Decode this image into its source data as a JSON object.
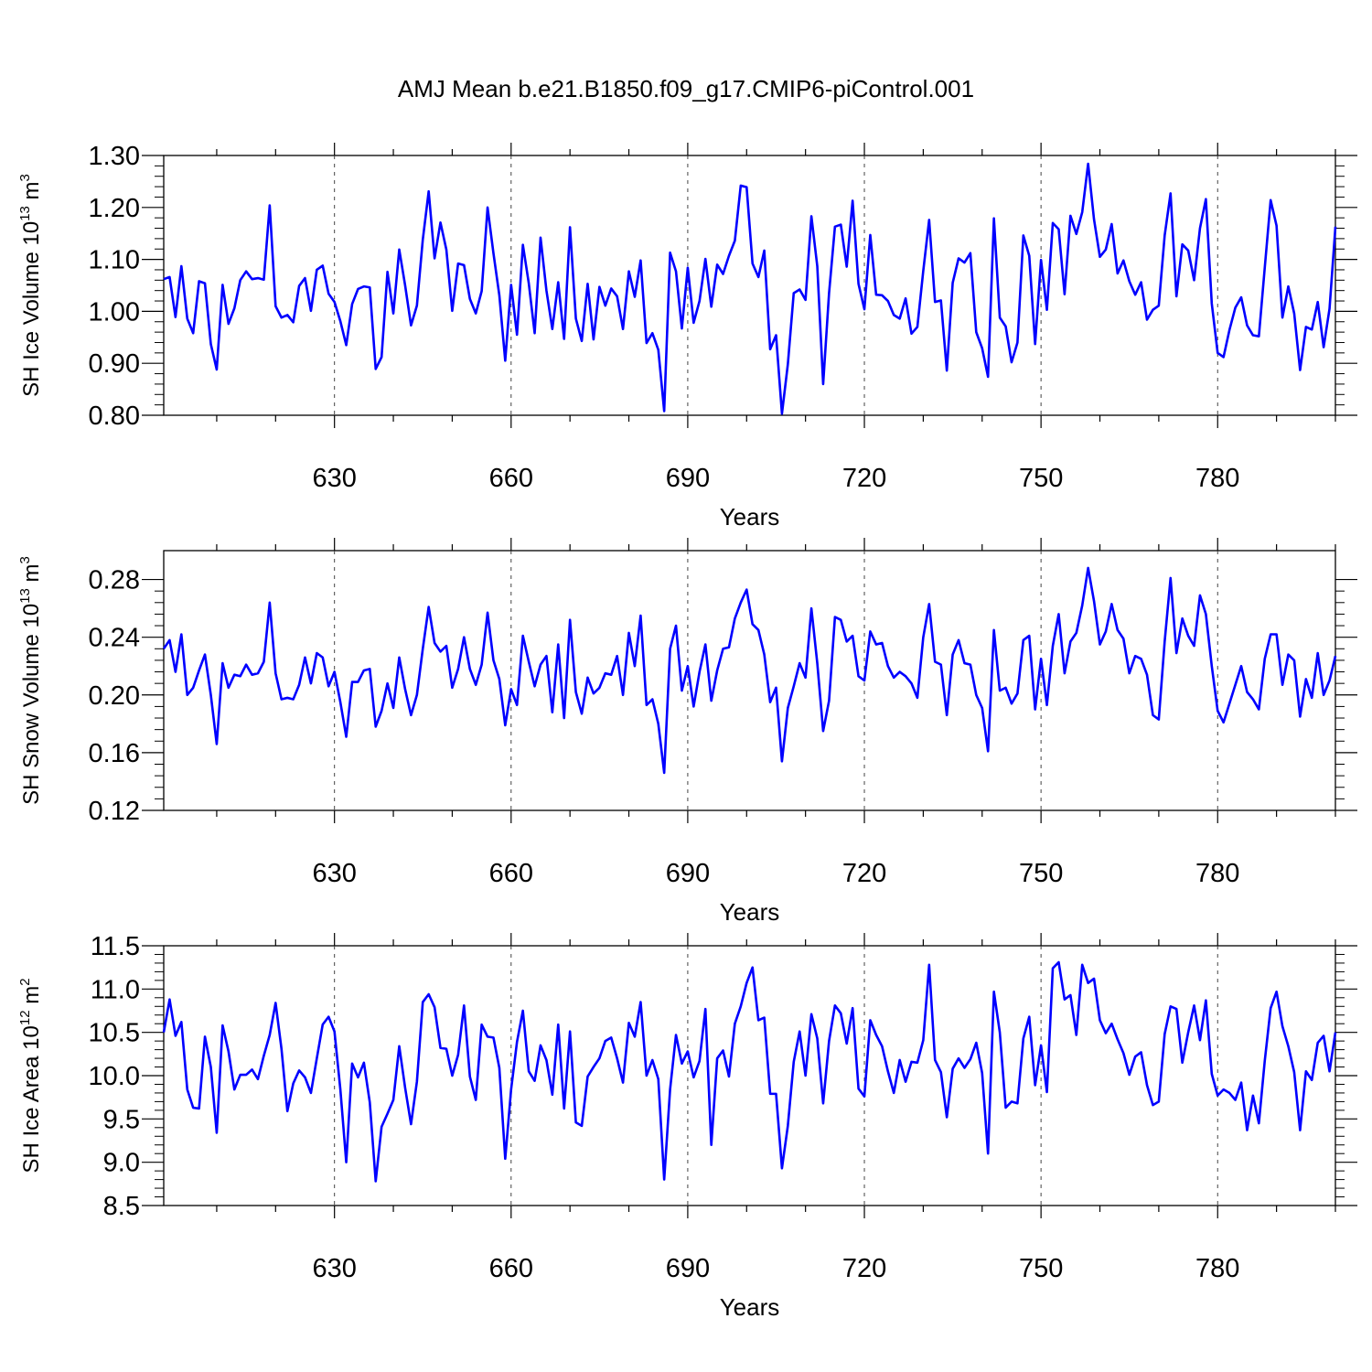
{
  "title": "AMJ Mean b.e21.B1850.f09_g17.CMIP6-piControl.001",
  "colors": {
    "line": "#0000ff",
    "axis": "#000000",
    "grid": "#000000"
  },
  "chart_data": [
    {
      "type": "line",
      "xlabel": "Years",
      "ylabel": {
        "text": "SH Ice Volume 10",
        "exp": "13",
        "unit": " m",
        "unit_exp": "3"
      },
      "x_start": 601,
      "xlim": [
        601,
        800
      ],
      "ylim": [
        0.8,
        1.3
      ],
      "xticks": [
        630,
        660,
        690,
        720,
        750,
        780
      ],
      "xtick_labels": [
        "630",
        "660",
        "690",
        "720",
        "750",
        "780"
      ],
      "yticks": [
        0.8,
        0.9,
        1.0,
        1.1,
        1.2,
        1.3
      ],
      "ytick_labels": [
        "0.80",
        "0.90",
        "1.00",
        "1.10",
        "1.20",
        "1.30"
      ],
      "series": [
        {
          "values": [
            1.062,
            1.066,
            0.989,
            1.087,
            0.986,
            0.958,
            1.058,
            1.054,
            0.937,
            0.888,
            1.051,
            0.976,
            1.006,
            1.06,
            1.077,
            1.062,
            1.064,
            1.061,
            1.204,
            1.01,
            0.988,
            0.993,
            0.979,
            1.049,
            1.064,
            1.001,
            1.08,
            1.088,
            1.034,
            1.018,
            0.981,
            0.935,
            1.014,
            1.043,
            1.048,
            1.046,
            0.889,
            0.912,
            1.076,
            0.996,
            1.119,
            1.05,
            0.973,
            1.011,
            1.138,
            1.231,
            1.102,
            1.171,
            1.119,
            1.001,
            1.092,
            1.089,
            1.024,
            0.996,
            1.039,
            1.2,
            1.112,
            1.031,
            0.905,
            1.051,
            0.955,
            1.128,
            1.054,
            0.958,
            1.142,
            1.04,
            0.966,
            1.056,
            0.947,
            1.162,
            0.986,
            0.943,
            1.053,
            0.946,
            1.047,
            1.011,
            1.044,
            1.029,
            0.966,
            1.077,
            1.028,
            1.098,
            0.939,
            0.958,
            0.926,
            0.808,
            1.113,
            1.077,
            0.967,
            1.084,
            0.978,
            1.02,
            1.101,
            1.009,
            1.09,
            1.072,
            1.107,
            1.136,
            1.242,
            1.239,
            1.092,
            1.066,
            1.117,
            0.927,
            0.954,
            0.803,
            0.898,
            1.035,
            1.042,
            1.022,
            1.183,
            1.087,
            0.86,
            1.035,
            1.163,
            1.167,
            1.086,
            1.213,
            1.053,
            1.004,
            1.147,
            1.032,
            1.031,
            1.02,
            0.993,
            0.986,
            1.025,
            0.957,
            0.97,
            1.078,
            1.176,
            1.018,
            1.021,
            0.886,
            1.055,
            1.102,
            1.094,
            1.112,
            0.96,
            0.929,
            0.874,
            1.179,
            0.988,
            0.971,
            0.902,
            0.94,
            1.146,
            1.107,
            0.937,
            1.099,
            1.003,
            1.17,
            1.158,
            1.033,
            1.184,
            1.149,
            1.191,
            1.284,
            1.177,
            1.105,
            1.119,
            1.168,
            1.073,
            1.098,
            1.058,
            1.032,
            1.056,
            0.984,
            1.003,
            1.011,
            1.146,
            1.227,
            1.029,
            1.129,
            1.117,
            1.06,
            1.16,
            1.216,
            1.015,
            0.92,
            0.912,
            0.964,
            1.007,
            1.027,
            0.973,
            0.954,
            0.952,
            1.084,
            1.214,
            1.165,
            0.988,
            1.048,
            0.996,
            0.887,
            0.97,
            0.965,
            1.018,
            0.931,
            1.005,
            1.163
          ]
        }
      ]
    },
    {
      "type": "line",
      "xlabel": "Years",
      "ylabel": {
        "text": "SH Snow Volume 10",
        "exp": "13",
        "unit": " m",
        "unit_exp": "3"
      },
      "x_start": 601,
      "xlim": [
        601,
        800
      ],
      "ylim": [
        0.12,
        0.3
      ],
      "xticks": [
        630,
        660,
        690,
        720,
        750,
        780
      ],
      "xtick_labels": [
        "630",
        "660",
        "690",
        "720",
        "750",
        "780"
      ],
      "yticks": [
        0.12,
        0.16,
        0.2,
        0.24,
        0.28
      ],
      "ytick_labels": [
        "0.12",
        "0.16",
        "0.20",
        "0.24",
        "0.28"
      ],
      "series": [
        {
          "values": [
            0.232,
            0.238,
            0.216,
            0.242,
            0.2,
            0.205,
            0.217,
            0.228,
            0.2,
            0.166,
            0.222,
            0.205,
            0.214,
            0.213,
            0.221,
            0.214,
            0.215,
            0.223,
            0.264,
            0.215,
            0.197,
            0.198,
            0.197,
            0.207,
            0.226,
            0.208,
            0.229,
            0.226,
            0.206,
            0.216,
            0.195,
            0.171,
            0.209,
            0.209,
            0.217,
            0.218,
            0.178,
            0.189,
            0.208,
            0.191,
            0.226,
            0.204,
            0.186,
            0.2,
            0.232,
            0.261,
            0.236,
            0.23,
            0.234,
            0.205,
            0.218,
            0.24,
            0.218,
            0.207,
            0.221,
            0.257,
            0.224,
            0.211,
            0.179,
            0.204,
            0.193,
            0.241,
            0.223,
            0.206,
            0.221,
            0.227,
            0.188,
            0.235,
            0.184,
            0.252,
            0.202,
            0.187,
            0.212,
            0.201,
            0.205,
            0.215,
            0.214,
            0.227,
            0.2,
            0.243,
            0.22,
            0.255,
            0.193,
            0.197,
            0.18,
            0.146,
            0.232,
            0.248,
            0.203,
            0.22,
            0.192,
            0.216,
            0.235,
            0.196,
            0.217,
            0.232,
            0.233,
            0.253,
            0.264,
            0.273,
            0.249,
            0.245,
            0.228,
            0.195,
            0.205,
            0.154,
            0.191,
            0.206,
            0.222,
            0.212,
            0.26,
            0.222,
            0.175,
            0.196,
            0.254,
            0.252,
            0.237,
            0.241,
            0.213,
            0.21,
            0.244,
            0.235,
            0.236,
            0.22,
            0.212,
            0.216,
            0.213,
            0.208,
            0.198,
            0.24,
            0.263,
            0.223,
            0.221,
            0.186,
            0.228,
            0.238,
            0.222,
            0.221,
            0.2,
            0.191,
            0.161,
            0.245,
            0.203,
            0.205,
            0.194,
            0.201,
            0.238,
            0.241,
            0.19,
            0.225,
            0.193,
            0.234,
            0.256,
            0.215,
            0.237,
            0.243,
            0.262,
            0.288,
            0.265,
            0.235,
            0.244,
            0.263,
            0.245,
            0.239,
            0.215,
            0.227,
            0.225,
            0.214,
            0.186,
            0.183,
            0.237,
            0.281,
            0.229,
            0.253,
            0.241,
            0.234,
            0.269,
            0.256,
            0.22,
            0.189,
            0.181,
            0.194,
            0.207,
            0.22,
            0.202,
            0.197,
            0.19,
            0.225,
            0.242,
            0.242,
            0.207,
            0.228,
            0.224,
            0.185,
            0.211,
            0.198,
            0.229,
            0.2,
            0.21,
            0.227
          ]
        }
      ]
    },
    {
      "type": "line",
      "xlabel": "Years",
      "ylabel": {
        "text": "SH Ice Area 10",
        "exp": "12",
        "unit": " m",
        "unit_exp": "2"
      },
      "x_start": 601,
      "xlim": [
        601,
        800
      ],
      "ylim": [
        8.5,
        11.5
      ],
      "xticks": [
        630,
        660,
        690,
        720,
        750,
        780
      ],
      "xtick_labels": [
        "630",
        "660",
        "690",
        "720",
        "750",
        "780"
      ],
      "yticks": [
        8.5,
        9.0,
        9.5,
        10.0,
        10.5,
        11.0,
        11.5
      ],
      "ytick_labels": [
        "8.5",
        "9.0",
        "9.5",
        "10.0",
        "10.5",
        "11.0",
        "11.5"
      ],
      "series": [
        {
          "values": [
            10.5,
            10.88,
            10.46,
            10.62,
            9.84,
            9.63,
            9.62,
            10.45,
            10.1,
            9.34,
            10.58,
            10.28,
            9.84,
            10.01,
            10.01,
            10.07,
            9.96,
            10.23,
            10.47,
            10.84,
            10.31,
            9.59,
            9.91,
            10.06,
            9.98,
            9.8,
            10.2,
            10.59,
            10.68,
            10.51,
            9.84,
            9.0,
            10.14,
            9.98,
            10.15,
            9.69,
            8.78,
            9.41,
            9.56,
            9.72,
            10.34,
            9.86,
            9.44,
            9.93,
            10.85,
            10.94,
            10.79,
            10.32,
            10.31,
            10.0,
            10.24,
            10.81,
            9.99,
            9.72,
            10.59,
            10.45,
            10.44,
            10.09,
            9.04,
            9.84,
            10.39,
            10.75,
            10.05,
            9.94,
            10.35,
            10.18,
            9.78,
            10.59,
            9.62,
            10.51,
            9.46,
            9.42,
            9.99,
            10.1,
            10.2,
            10.4,
            10.44,
            10.2,
            9.92,
            10.61,
            10.45,
            10.85,
            10.0,
            10.18,
            9.96,
            8.8,
            9.84,
            10.47,
            10.14,
            10.28,
            9.98,
            10.17,
            10.77,
            9.2,
            10.2,
            10.29,
            9.99,
            10.6,
            10.8,
            11.07,
            11.25,
            10.64,
            10.67,
            9.79,
            9.79,
            8.93,
            9.42,
            10.16,
            10.51,
            10.0,
            10.71,
            10.43,
            9.68,
            10.4,
            10.81,
            10.72,
            10.37,
            10.78,
            9.85,
            9.76,
            10.64,
            10.47,
            10.34,
            10.05,
            9.8,
            10.18,
            9.93,
            10.16,
            10.15,
            10.41,
            11.28,
            10.18,
            10.04,
            9.52,
            10.08,
            10.2,
            10.09,
            10.19,
            10.38,
            10.03,
            9.1,
            10.97,
            10.5,
            9.63,
            9.7,
            9.68,
            10.43,
            10.68,
            9.89,
            10.35,
            9.81,
            11.24,
            11.31,
            10.88,
            10.93,
            10.47,
            11.28,
            11.07,
            11.12,
            10.64,
            10.49,
            10.6,
            10.42,
            10.26,
            10.01,
            10.22,
            10.27,
            9.89,
            9.66,
            9.7,
            10.48,
            10.8,
            10.77,
            10.15,
            10.5,
            10.81,
            10.41,
            10.87,
            10.02,
            9.77,
            9.84,
            9.8,
            9.72,
            9.92,
            9.37,
            9.77,
            9.45,
            10.17,
            10.78,
            10.97,
            10.57,
            10.34,
            10.04,
            9.37,
            10.05,
            9.95,
            10.38,
            10.46,
            10.05,
            10.5
          ]
        }
      ]
    }
  ]
}
